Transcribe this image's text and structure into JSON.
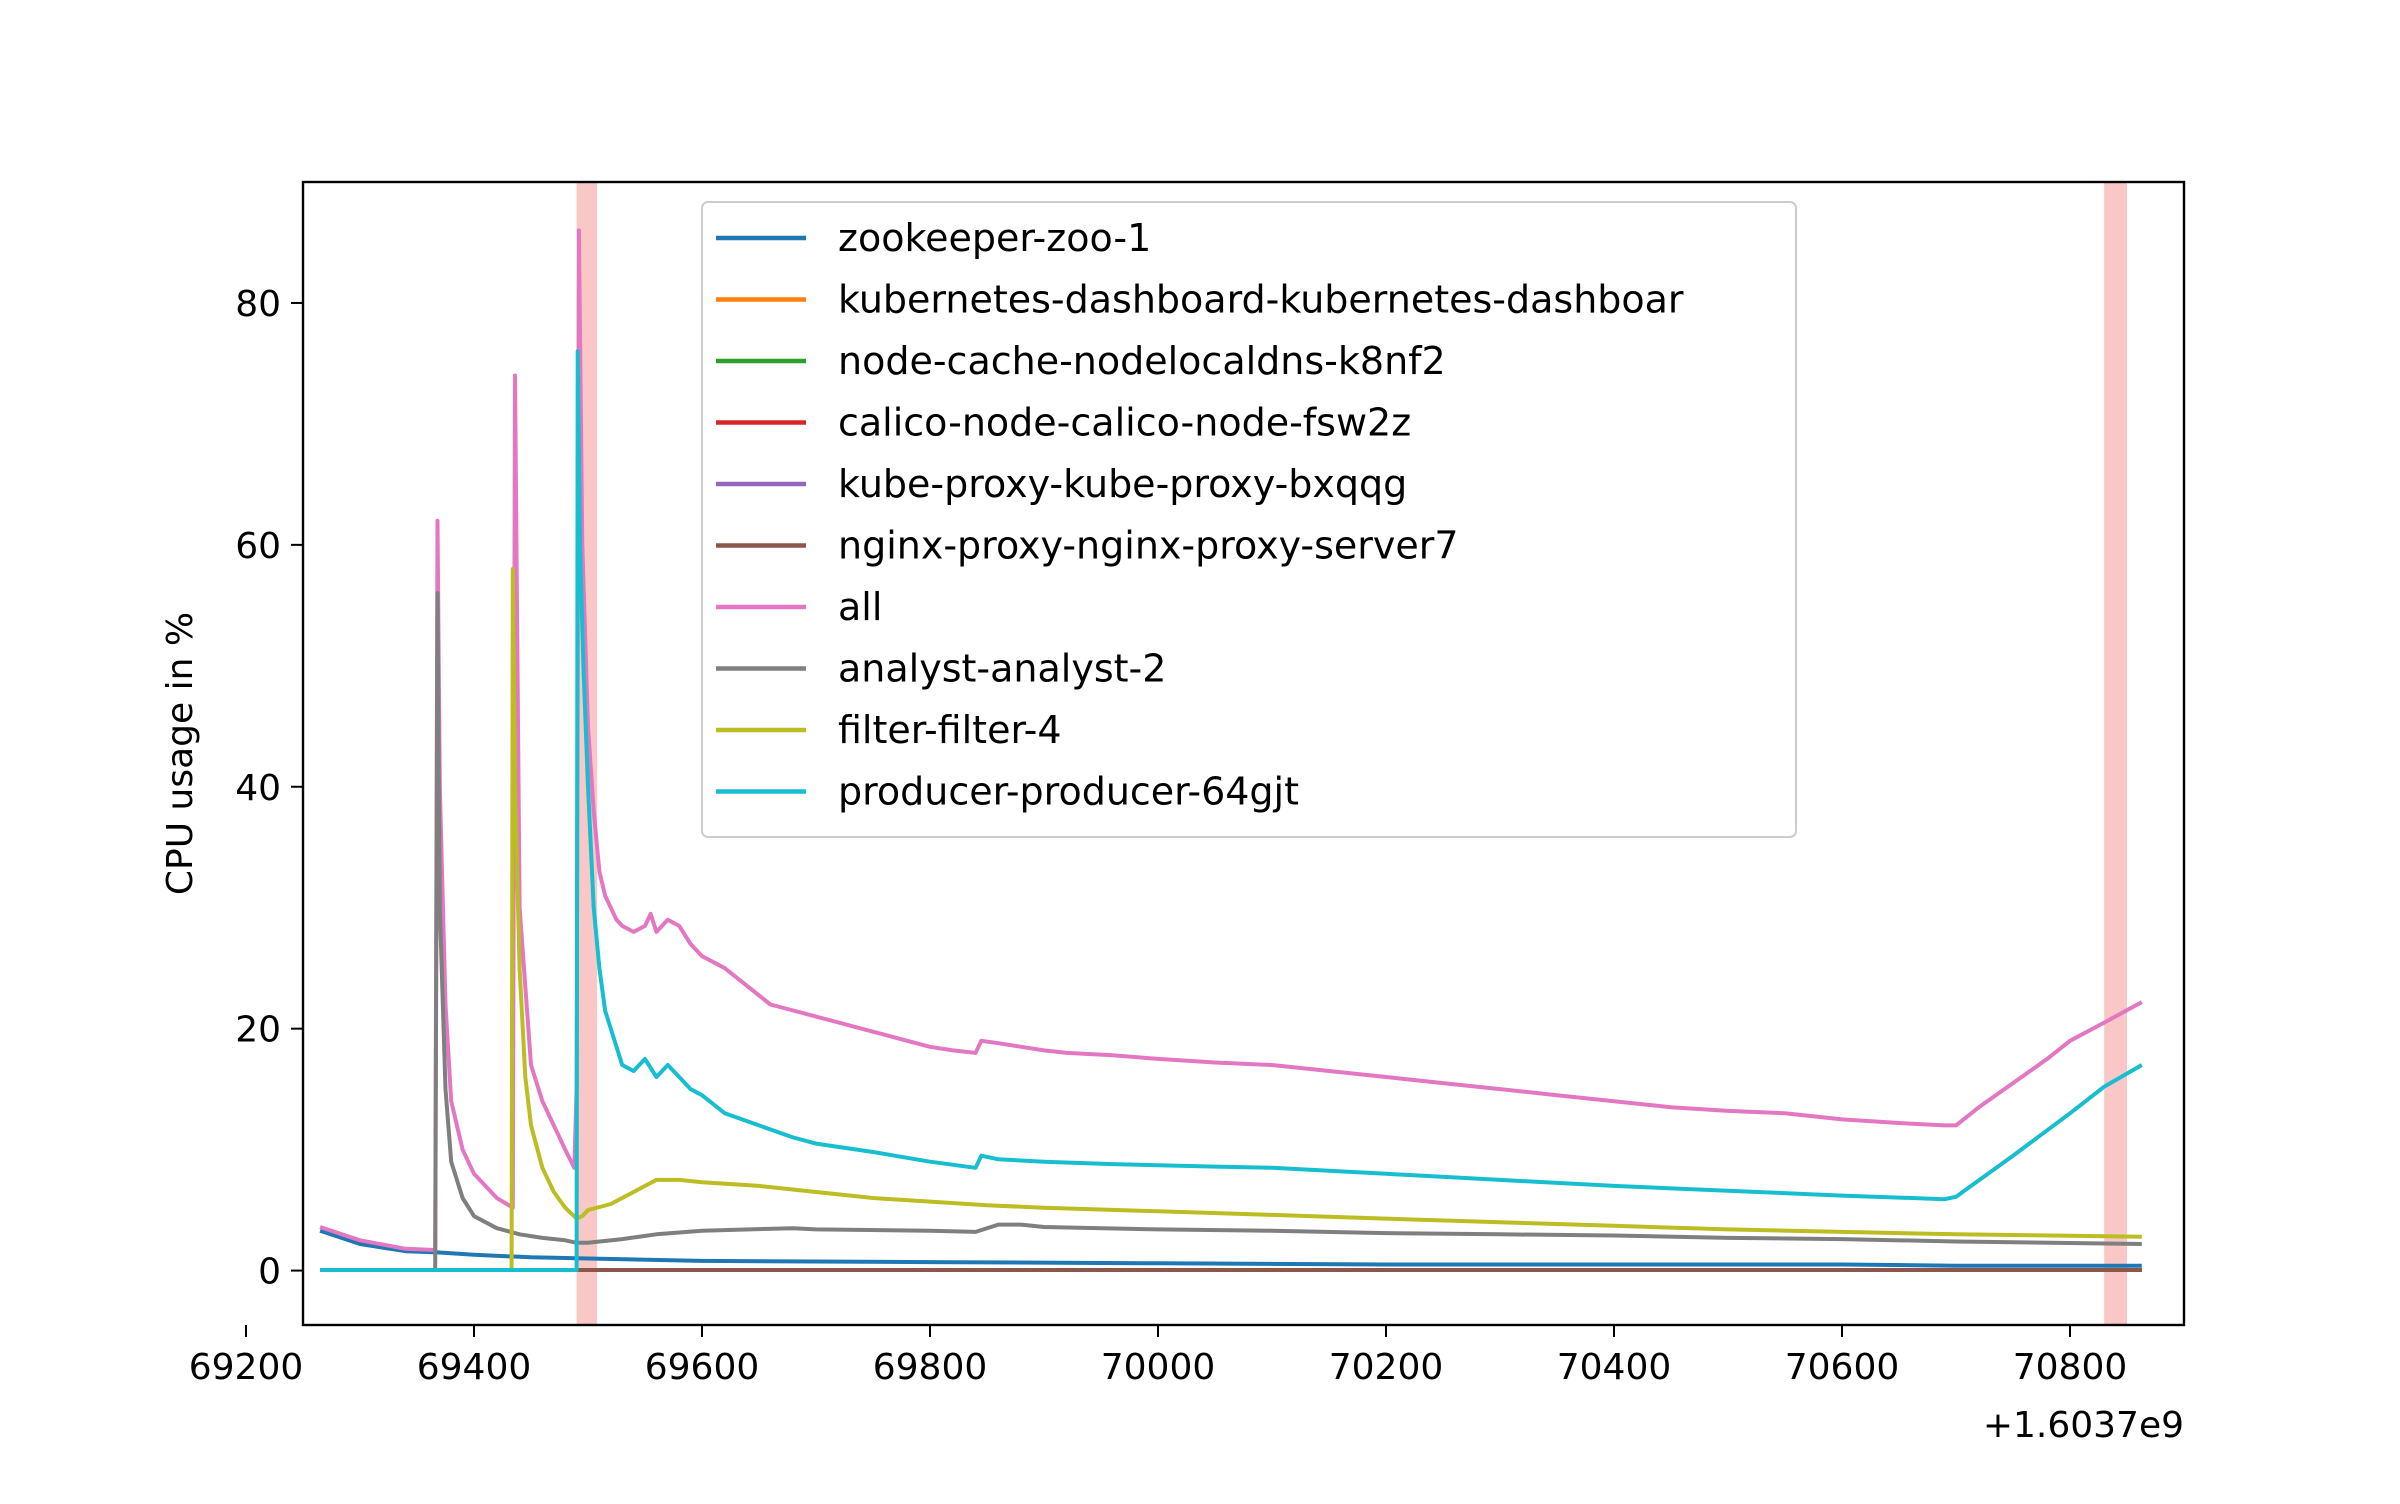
{
  "chart_data": {
    "type": "line",
    "title": "",
    "xlabel": "",
    "ylabel": "CPU usage in %",
    "x_offset_label": "+1.6037e9",
    "xlim": [
      69250,
      70900
    ],
    "ylim": [
      -4.5,
      90
    ],
    "grid": false,
    "legend_position": "top-center",
    "x_ticks": [
      69200,
      69400,
      69600,
      69800,
      70000,
      70200,
      70400,
      70600,
      70800
    ],
    "x_tick_labels": [
      "69200",
      "69400",
      "69600",
      "69800",
      "70000",
      "70200",
      "70400",
      "70600",
      "70800"
    ],
    "y_ticks": [
      0,
      20,
      40,
      60,
      80
    ],
    "y_tick_labels": [
      "0",
      "20",
      "40",
      "60",
      "80"
    ],
    "highlight_spans": [
      {
        "x0": 69490,
        "x1": 69508,
        "color": "#f7a1a1"
      },
      {
        "x0": 70830,
        "x1": 70850,
        "color": "#f7a1a1"
      }
    ],
    "series": [
      {
        "name": "zookeeper-zoo-1",
        "color": "#1f77b4",
        "x": [
          69265,
          69300,
          69340,
          69368,
          69400,
          69450,
          69500,
          69600,
          69800,
          70000,
          70200,
          70400,
          70600,
          70700,
          70863
        ],
        "y": [
          3.3,
          2.2,
          1.6,
          1.5,
          1.3,
          1.1,
          1.0,
          0.8,
          0.7,
          0.6,
          0.5,
          0.5,
          0.5,
          0.4,
          0.4
        ]
      },
      {
        "name": "kubernetes-dashboard-kubernetes-dashboar",
        "color": "#ff7f0e",
        "x": [
          69265,
          70863
        ],
        "y": [
          0.05,
          0.05
        ]
      },
      {
        "name": "node-cache-nodelocaldns-k8nf2",
        "color": "#2ca02c",
        "x": [
          69265,
          70863
        ],
        "y": [
          0.05,
          0.05
        ]
      },
      {
        "name": "calico-node-calico-node-fsw2z",
        "color": "#d62728",
        "x": [
          69265,
          70863
        ],
        "y": [
          0.05,
          0.05
        ]
      },
      {
        "name": "kube-proxy-kube-proxy-bxqqg",
        "color": "#9467bd",
        "x": [
          69265,
          70863
        ],
        "y": [
          0.05,
          0.05
        ]
      },
      {
        "name": "nginx-proxy-nginx-proxy-server7",
        "color": "#8c564b",
        "x": [
          69265,
          70863
        ],
        "y": [
          0.05,
          0.05
        ]
      },
      {
        "name": "all",
        "color": "#e377c2",
        "x": [
          69265,
          69300,
          69340,
          69366,
          69368,
          69370,
          69375,
          69380,
          69390,
          69400,
          69420,
          69434,
          69436,
          69440,
          69450,
          69460,
          69470,
          69480,
          69488,
          69490,
          69492,
          69495,
          69500,
          69505,
          69510,
          69515,
          69520,
          69525,
          69530,
          69540,
          69550,
          69555,
          69560,
          69570,
          69580,
          69590,
          69600,
          69620,
          69640,
          69660,
          69680,
          69700,
          69720,
          69740,
          69760,
          69780,
          69800,
          69820,
          69840,
          69845,
          69860,
          69880,
          69900,
          69920,
          69960,
          70000,
          70050,
          70100,
          70150,
          70200,
          70250,
          70300,
          70350,
          70400,
          70450,
          70500,
          70550,
          70600,
          70650,
          70690,
          70700,
          70720,
          70750,
          70780,
          70800,
          70830,
          70863
        ],
        "y": [
          3.6,
          2.5,
          1.8,
          1.7,
          62,
          40,
          22,
          14,
          10,
          8,
          6,
          5.2,
          74,
          30,
          17,
          14,
          12,
          10,
          8.5,
          15,
          86,
          60,
          45,
          38,
          33,
          31,
          30,
          29,
          28.5,
          28,
          28.5,
          29.5,
          28,
          29,
          28.5,
          27,
          26,
          25,
          23.5,
          22,
          21.5,
          21,
          20.5,
          20,
          19.5,
          19,
          18.5,
          18.2,
          18,
          19,
          18.8,
          18.5,
          18.2,
          18,
          17.8,
          17.5,
          17.2,
          17,
          16.5,
          16,
          15.5,
          15,
          14.5,
          14,
          13.5,
          13.2,
          13,
          12.5,
          12.2,
          12,
          12,
          13.5,
          15.5,
          17.5,
          19,
          20.5,
          22.2
        ]
      },
      {
        "name": "analyst-analyst-2",
        "color": "#7f7f7f",
        "x": [
          69265,
          69365,
          69366,
          69368,
          69370,
          69375,
          69380,
          69390,
          69400,
          69420,
          69440,
          69460,
          69480,
          69490,
          69500,
          69530,
          69560,
          69600,
          69680,
          69700,
          69800,
          69840,
          69860,
          69880,
          69900,
          70000,
          70100,
          70200,
          70300,
          70400,
          70500,
          70600,
          70700,
          70863
        ],
        "y": [
          0.05,
          0.05,
          0.05,
          56,
          30,
          15,
          9,
          6,
          4.5,
          3.5,
          3.0,
          2.7,
          2.5,
          2.3,
          2.3,
          2.6,
          3.0,
          3.3,
          3.5,
          3.4,
          3.3,
          3.2,
          3.8,
          3.8,
          3.6,
          3.4,
          3.3,
          3.1,
          3.0,
          2.9,
          2.7,
          2.6,
          2.4,
          2.2
        ]
      },
      {
        "name": "filter-filter-4",
        "color": "#bcbd22",
        "x": [
          69265,
          69433,
          69434,
          69436,
          69440,
          69445,
          69450,
          69460,
          69470,
          69480,
          69490,
          69495,
          69500,
          69520,
          69540,
          69560,
          69580,
          69600,
          69650,
          69700,
          69750,
          69800,
          69850,
          69900,
          70000,
          70100,
          70200,
          70300,
          70400,
          70500,
          70600,
          70700,
          70863
        ],
        "y": [
          0.05,
          0.05,
          58,
          40,
          25,
          16,
          12,
          8.5,
          6.5,
          5.2,
          4.3,
          4.5,
          5.0,
          5.5,
          6.5,
          7.5,
          7.5,
          7.3,
          7.0,
          6.5,
          6.0,
          5.7,
          5.4,
          5.2,
          4.9,
          4.6,
          4.3,
          4.0,
          3.7,
          3.4,
          3.2,
          3.0,
          2.8
        ]
      },
      {
        "name": "producer-producer-64gjt",
        "color": "#17becf",
        "x": [
          69265,
          69490,
          69491,
          69493,
          69496,
          69500,
          69505,
          69510,
          69515,
          69520,
          69525,
          69530,
          69540,
          69550,
          69560,
          69570,
          69580,
          69590,
          69600,
          69620,
          69650,
          69680,
          69700,
          69750,
          69800,
          69840,
          69845,
          69860,
          69900,
          69960,
          70000,
          70050,
          70100,
          70200,
          70300,
          70400,
          70500,
          70600,
          70690,
          70700,
          70750,
          70800,
          70830,
          70863
        ],
        "y": [
          0.05,
          0.05,
          76,
          60,
          50,
          40,
          30,
          25,
          21.5,
          20,
          18.5,
          17,
          16.5,
          17.5,
          16,
          17,
          16,
          15,
          14.5,
          13,
          12,
          11,
          10.5,
          9.8,
          9,
          8.5,
          9.5,
          9.2,
          9.0,
          8.8,
          8.7,
          8.6,
          8.5,
          8.0,
          7.5,
          7.0,
          6.6,
          6.2,
          5.9,
          6.1,
          9.5,
          13,
          15.2,
          17
        ]
      }
    ]
  }
}
